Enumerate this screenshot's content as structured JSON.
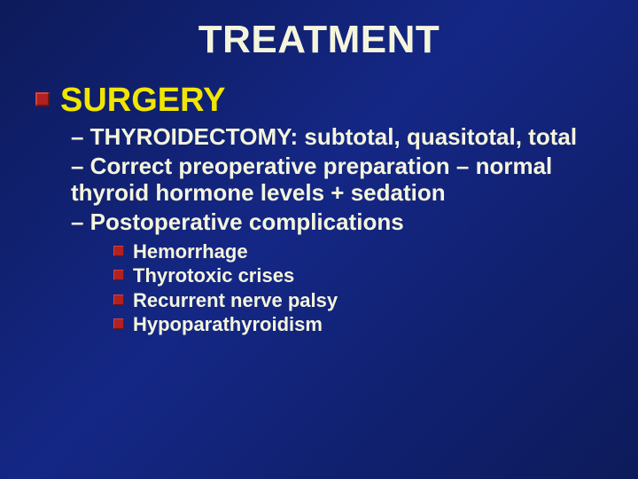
{
  "slide": {
    "background_gradient": [
      "#0d1a5a",
      "#142785",
      "#0d1a5a"
    ],
    "title": {
      "text": "TREATMENT",
      "color": "#f5f5dc",
      "font_size_pt": 44,
      "font_weight": "bold"
    },
    "body": {
      "level1": {
        "bullet_color": "#b22020",
        "text_color": "#f2e600",
        "font_size_pt": 38,
        "items": [
          {
            "text": "SURGERY"
          }
        ]
      },
      "level2": {
        "prefix": "– ",
        "text_color": "#f5f5dc",
        "font_size_pt": 26,
        "items": [
          {
            "text": "– THYROIDECTOMY: subtotal, quasitotal, total"
          },
          {
            "text": "– Correct preoperative preparation – normal thyroid hormone levels + sedation"
          },
          {
            "text": "– Postoperative complications"
          }
        ]
      },
      "level3": {
        "bullet_color": "#b22020",
        "text_color": "#f5f5dc",
        "font_size_pt": 22,
        "items": [
          {
            "text": "Hemorrhage"
          },
          {
            "text": "Thyrotoxic crises"
          },
          {
            "text": "Recurrent nerve palsy"
          },
          {
            "text": "Hypoparathyroidism"
          }
        ]
      }
    }
  }
}
